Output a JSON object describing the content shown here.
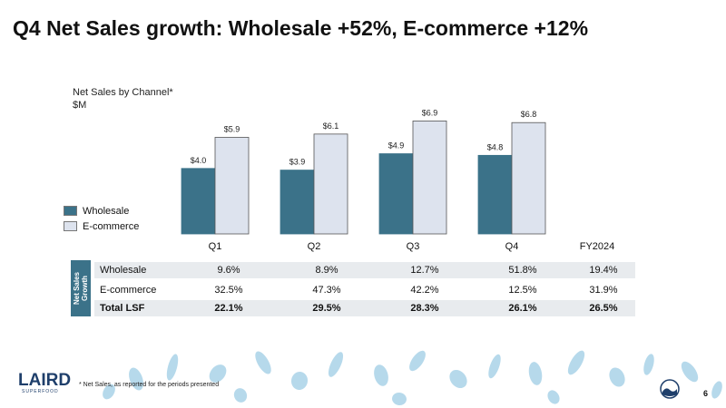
{
  "title": "Q4 Net Sales growth: Wholesale +52%, E-commerce +12%",
  "colors": {
    "wholesale": "#3b7289",
    "ecommerce": "#dde3ee",
    "leaf": "#a9d2e8",
    "brand": "#1f3f6b"
  },
  "chart_data": {
    "type": "bar",
    "title": "Net Sales by Channel*",
    "ylabel": "$M",
    "categories": [
      "Q1",
      "Q2",
      "Q3",
      "Q4"
    ],
    "series": [
      {
        "name": "Wholesale",
        "values": [
          4.0,
          3.9,
          4.9,
          4.8
        ],
        "labels": [
          "$4.0",
          "$3.9",
          "$4.9",
          "$4.8"
        ]
      },
      {
        "name": "E-commerce",
        "values": [
          5.9,
          6.1,
          6.9,
          6.8
        ],
        "labels": [
          "$5.9",
          "$6.1",
          "$6.9",
          "$6.8"
        ]
      }
    ],
    "ylim": [
      0,
      7.2
    ],
    "extra_category": "FY2024",
    "legend": "left"
  },
  "growth": {
    "side_label_line1": "Net Sales",
    "side_label_line2": "Growth",
    "rows": [
      {
        "label": "Wholesale",
        "values": [
          "9.6%",
          "8.9%",
          "12.7%",
          "51.8%",
          "19.4%"
        ]
      },
      {
        "label": "E-commerce",
        "values": [
          "32.5%",
          "47.3%",
          "42.2%",
          "12.5%",
          "31.9%"
        ]
      },
      {
        "label": "Total LSF",
        "values": [
          "22.1%",
          "29.5%",
          "28.3%",
          "26.1%",
          "26.5%"
        ]
      }
    ]
  },
  "footnote": "* Net Sales, as reported for the periods presented",
  "page_number": "6",
  "logo": {
    "name": "LAIRD",
    "tagline": "SUPERFOOD"
  }
}
